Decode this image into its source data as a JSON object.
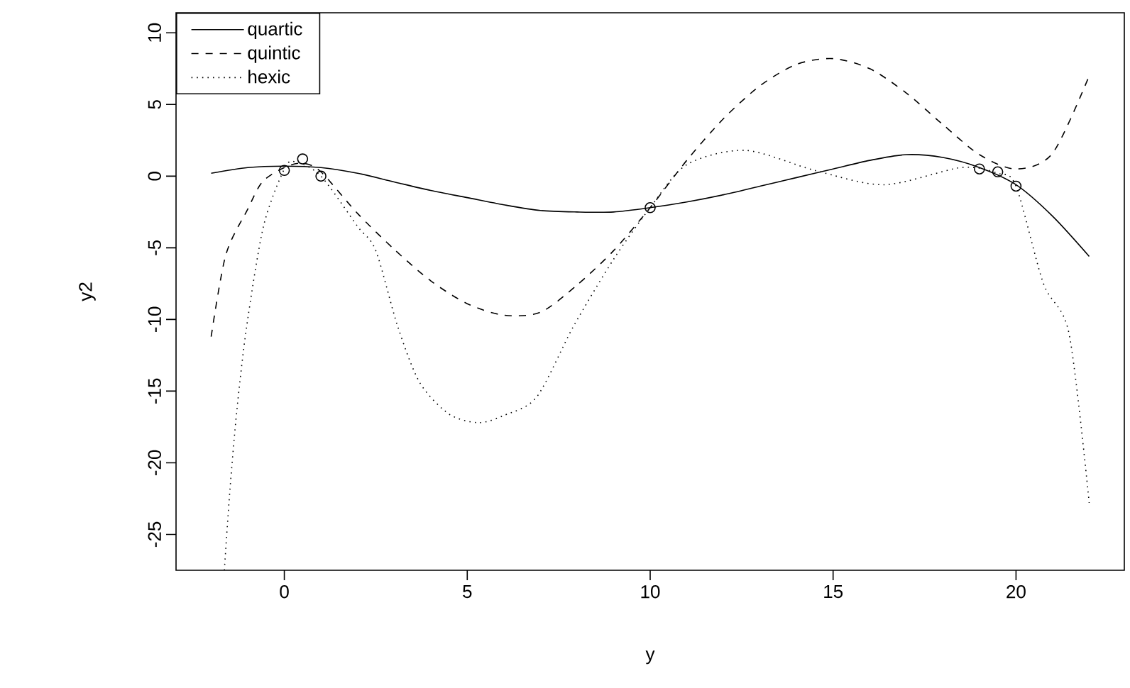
{
  "chart_data": {
    "type": "line",
    "xlabel": "y",
    "ylabel": "y2",
    "xlim": [
      -2.96,
      22.96
    ],
    "ylim": [
      -27.5,
      11.4
    ],
    "xticks": [
      0,
      5,
      10,
      15,
      20
    ],
    "yticks": [
      -25,
      -20,
      -15,
      -10,
      -5,
      0,
      5,
      10
    ],
    "grid": false,
    "legend": "top left",
    "series": [
      {
        "name": "quartic",
        "line_style": "solid",
        "color": "#000000",
        "x": [
          -2,
          -1,
          0,
          1,
          2,
          3,
          4,
          5,
          6,
          7,
          8,
          9,
          10,
          11,
          12,
          13,
          14,
          15,
          16,
          17,
          18,
          19,
          20,
          21,
          22
        ],
        "values": [
          0.2,
          0.6,
          0.7,
          0.6,
          0.2,
          -0.4,
          -1.0,
          -1.5,
          -2.0,
          -2.4,
          -2.5,
          -2.5,
          -2.2,
          -1.8,
          -1.3,
          -0.7,
          -0.1,
          0.5,
          1.1,
          1.5,
          1.3,
          0.6,
          -0.6,
          -2.8,
          -5.6
        ]
      },
      {
        "name": "quintic",
        "line_style": "dashed",
        "color": "#000000",
        "x": [
          -2,
          -1.6,
          -1,
          -0.6,
          0,
          0.5,
          1,
          2,
          3,
          4,
          5,
          6,
          7,
          8,
          9,
          10,
          11,
          12,
          13,
          14,
          15,
          16,
          17,
          18,
          19,
          20,
          21,
          22
        ],
        "values": [
          -11.2,
          -5.5,
          -2.3,
          -0.4,
          0.6,
          0.9,
          0.3,
          -2.6,
          -5.1,
          -7.3,
          -8.9,
          -9.7,
          -9.5,
          -7.6,
          -5.2,
          -2.2,
          1.1,
          4.0,
          6.3,
          7.8,
          8.2,
          7.5,
          5.8,
          3.6,
          1.5,
          0.5,
          1.6,
          7.0
        ]
      },
      {
        "name": "hexic",
        "line_style": "dotted",
        "color": "#000000",
        "x": [
          -1.64,
          -1.49,
          -1.3,
          -1.03,
          -0.57,
          0,
          0.3,
          1,
          2,
          2.5,
          3.1,
          3.7,
          4.5,
          5.3,
          6,
          6.9,
          7.9,
          9,
          10,
          11,
          12.6,
          14.5,
          16.4,
          18.5,
          19.5,
          20,
          20.75,
          21.45,
          22
        ],
        "values": [
          -27.5,
          -22,
          -16.4,
          -10.5,
          -3.5,
          0.5,
          1.0,
          0.0,
          -3.5,
          -5.2,
          -10.5,
          -14.4,
          -16.6,
          -17.2,
          -16.7,
          -15.4,
          -10.5,
          -5.8,
          -2.2,
          0.8,
          1.8,
          0.4,
          -0.6,
          0.6,
          0.2,
          -0.7,
          -7.5,
          -11.0,
          -22.8
        ]
      },
      {
        "type": "scatter",
        "marker": "circle",
        "color": "#000000",
        "x": [
          0,
          0.5,
          1,
          10,
          19,
          19.5,
          20
        ],
        "values": [
          0.4,
          1.2,
          0.0,
          -2.2,
          0.5,
          0.3,
          -0.7
        ]
      }
    ]
  }
}
